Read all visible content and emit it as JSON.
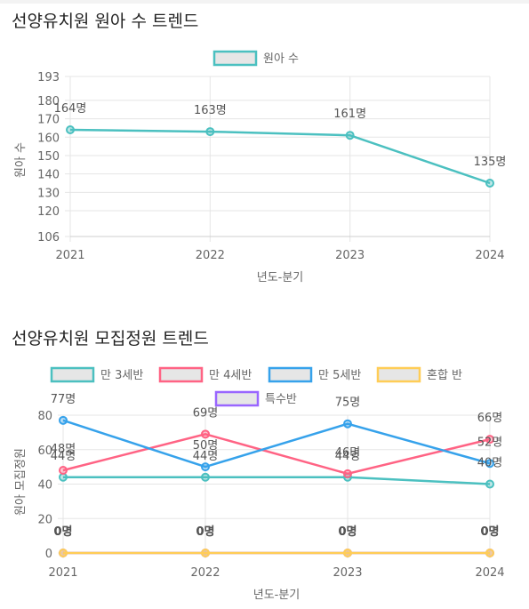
{
  "chart_data": [
    {
      "type": "line",
      "title": "선양유치원 원아 수 트렌드",
      "xlabel": "년도-분기",
      "ylabel": "원아 수",
      "categories": [
        "2021",
        "2022",
        "2023",
        "2024"
      ],
      "series": [
        {
          "name": "원아 수",
          "values": [
            164,
            163,
            161,
            135
          ],
          "color": "#4bc0c0",
          "labels": [
            "164명",
            "163명",
            "161명",
            "135명"
          ]
        }
      ],
      "yticks": [
        106,
        120,
        130,
        140,
        150,
        160,
        170,
        180,
        193
      ],
      "ylim": [
        106,
        193
      ],
      "grid": true,
      "legend": "top-center"
    },
    {
      "type": "line",
      "title": "선양유치원 모집정원 트렌드",
      "xlabel": "년도-분기",
      "ylabel": "원아 모집정원",
      "categories": [
        "2021",
        "2022",
        "2023",
        "2024"
      ],
      "series": [
        {
          "name": "만 3세반",
          "values": [
            44,
            44,
            44,
            40
          ],
          "color": "#4bc0c0",
          "labels": [
            "44명",
            "44명",
            "44명",
            "40명"
          ]
        },
        {
          "name": "만 4세반",
          "values": [
            48,
            69,
            46,
            66
          ],
          "color": "#ff6384",
          "labels": [
            "48명",
            "69명",
            "46명",
            "66명"
          ]
        },
        {
          "name": "만 5세반",
          "values": [
            77,
            50,
            75,
            52
          ],
          "color": "#36a2eb",
          "labels": [
            "77명",
            "50명",
            "75명",
            "52명"
          ]
        },
        {
          "name": "혼합 반",
          "values": [
            0,
            0,
            0,
            0
          ],
          "color": "#ffcd56",
          "labels": [
            "0명",
            "0명",
            "0명",
            "0명"
          ]
        },
        {
          "name": "특수반",
          "values": [
            0,
            0,
            0,
            0
          ],
          "color": "#9966ff",
          "labels": [
            "0명",
            "0명",
            "0명",
            "0명"
          ]
        }
      ],
      "yticks": [
        0,
        20,
        40,
        60,
        80
      ],
      "ylim": [
        0,
        80
      ],
      "grid": true,
      "legend": "top-center"
    }
  ]
}
